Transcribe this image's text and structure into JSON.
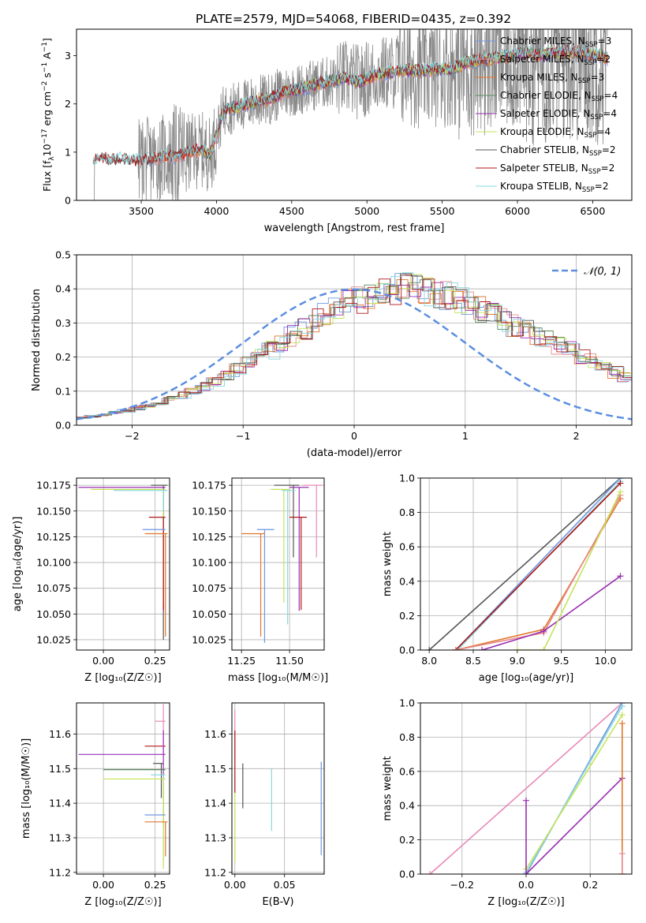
{
  "figure": {
    "title": "PLATE=2579, MJD=54068, FIBERID=0435, z=0.392"
  },
  "colors": {
    "chabrier_miles": "#6f96e0",
    "salpeter_miles": "#e58a8a",
    "kroupa_miles": "#e1772b",
    "chabrier_elodie": "#5b8a5b",
    "salpeter_elodie": "#9a2fb0",
    "kroupa_elodie": "#c6e35a",
    "chabrier_stelib": "#555555",
    "salpeter_stelib": "#b01818",
    "kroupa_stelib": "#86d8dc",
    "data_spectrum": "#888888",
    "normal_curve": "#5b8ee0",
    "pink": "#e88ab8"
  },
  "chart_data": [
    {
      "id": "spectrum",
      "type": "line",
      "xlabel": "wavelength [Angstrom, rest frame]",
      "ylabel": "Flux [f_λ 10^-17 erg cm^-2 s^-1 A^-1]",
      "xlim": [
        3070,
        6760
      ],
      "ylim": [
        0,
        3.55
      ],
      "xticks": [
        "3500",
        "4000",
        "4500",
        "5000",
        "5500",
        "6000",
        "6500"
      ],
      "yticks": [
        "0",
        "1",
        "2",
        "3"
      ],
      "grid": false,
      "legend_position": "top-right",
      "legend": [
        {
          "label": "Chabrier MILES, N",
          "sub": "SSP",
          "suffix": "=3",
          "color_key": "chabrier_miles"
        },
        {
          "label": "Salpeter MILES, N",
          "sub": "SSP",
          "suffix": "=2",
          "color_key": "salpeter_miles"
        },
        {
          "label": "Kroupa MILES, N",
          "sub": "SSP",
          "suffix": "=3",
          "color_key": "kroupa_miles"
        },
        {
          "label": "Chabrier ELODIE, N",
          "sub": "SSP",
          "suffix": "=4",
          "color_key": "chabrier_elodie"
        },
        {
          "label": "Salpeter ELODIE, N",
          "sub": "SSP",
          "suffix": "=4",
          "color_key": "salpeter_elodie"
        },
        {
          "label": "Kroupa ELODIE, N",
          "sub": "SSP",
          "suffix": "=4",
          "color_key": "kroupa_elodie"
        },
        {
          "label": "Chabrier STELIB, N",
          "sub": "SSP",
          "suffix": "=2",
          "color_key": "chabrier_stelib"
        },
        {
          "label": "Salpeter STELIB, N",
          "sub": "SSP",
          "suffix": "=2",
          "color_key": "salpeter_stelib"
        },
        {
          "label": "Kroupa STELIB, N",
          "sub": "SSP",
          "suffix": "=2",
          "color_key": "kroupa_stelib"
        }
      ],
      "model_continuum": [
        [
          3180,
          0.78
        ],
        [
          3230,
          0.88
        ],
        [
          3300,
          0.82
        ],
        [
          3380,
          0.85
        ],
        [
          3450,
          0.8
        ],
        [
          3550,
          0.84
        ],
        [
          3650,
          0.92
        ],
        [
          3720,
          0.9
        ],
        [
          3800,
          0.98
        ],
        [
          3900,
          1.05
        ],
        [
          3960,
          0.95
        ],
        [
          4050,
          1.88
        ],
        [
          4150,
          1.95
        ],
        [
          4250,
          2.05
        ],
        [
          4350,
          2.1
        ],
        [
          4450,
          2.25
        ],
        [
          4550,
          2.3
        ],
        [
          4650,
          2.4
        ],
        [
          4750,
          2.45
        ],
        [
          4850,
          2.55
        ],
        [
          4950,
          2.45
        ],
        [
          5050,
          2.6
        ],
        [
          5150,
          2.65
        ],
        [
          5250,
          2.7
        ],
        [
          5350,
          2.68
        ],
        [
          5450,
          2.72
        ],
        [
          5550,
          2.7
        ],
        [
          5650,
          2.85
        ],
        [
          5750,
          2.9
        ],
        [
          5850,
          2.95
        ],
        [
          5950,
          3.0
        ],
        [
          6050,
          3.05
        ],
        [
          6150,
          3.02
        ],
        [
          6250,
          3.05
        ],
        [
          6350,
          3.08
        ],
        [
          6450,
          3.05
        ],
        [
          6550,
          3.0
        ],
        [
          6600,
          2.95
        ]
      ],
      "data_start": 3185,
      "data_end": 6600
    },
    {
      "id": "residuals",
      "type": "line",
      "xlabel": "(data-model)/error",
      "ylabel": "Normed distribution",
      "xlim": [
        -2.5,
        2.5
      ],
      "ylim": [
        0,
        0.5
      ],
      "xticks": [
        "−2",
        "−1",
        "0",
        "1",
        "2"
      ],
      "yticks": [
        "0.0",
        "0.1",
        "0.2",
        "0.3",
        "0.4",
        "0.5"
      ],
      "grid": true,
      "legend_position": "top-right",
      "curve_label": "𝒩(0, 1)",
      "histogram_bin_width": 0.1,
      "histogram_base": [
        0.022,
        0.026,
        0.03,
        0.036,
        0.042,
        0.05,
        0.058,
        0.066,
        0.076,
        0.088,
        0.1,
        0.115,
        0.13,
        0.146,
        0.162,
        0.18,
        0.2,
        0.22,
        0.24,
        0.262,
        0.285,
        0.305,
        0.325,
        0.342,
        0.358,
        0.372,
        0.382,
        0.39,
        0.395,
        0.4,
        0.398,
        0.394,
        0.387,
        0.378,
        0.367,
        0.354,
        0.34,
        0.325,
        0.308,
        0.292,
        0.276,
        0.262,
        0.248,
        0.234,
        0.22,
        0.205,
        0.19,
        0.172,
        0.155,
        0.14
      ]
    },
    {
      "id": "age-vs-Z",
      "type": "scatter",
      "xlabel": "Z [log₁₀(Z/Z☉)]",
      "ylabel": "age  [log₁₀(age/yr)]",
      "xlim": [
        -0.13,
        0.32
      ],
      "ylim": [
        10.015,
        10.182
      ],
      "xticks": [
        "0.00",
        "0.25"
      ],
      "yticks": [
        "10.025",
        "10.050",
        "10.075",
        "10.100",
        "10.125",
        "10.150",
        "10.175"
      ],
      "grid": true,
      "points": [
        {
          "x": 0.29,
          "y": 10.175,
          "xerr": [
            0.06,
            0.02
          ],
          "yerr": [
            0.15,
            0.0
          ],
          "color_key": "chabrier_stelib"
        },
        {
          "x": 0.29,
          "y": 10.173,
          "xerr": [
            0.41,
            0.01
          ],
          "yerr": [
            0.12,
            0.0
          ],
          "color_key": "salpeter_elodie"
        },
        {
          "x": 0.29,
          "y": 10.171,
          "xerr": [
            0.35,
            0.01
          ],
          "yerr": [
            0.11,
            0.0
          ],
          "color_key": "kroupa_elodie"
        },
        {
          "x": 0.29,
          "y": 10.17,
          "xerr": [
            0.24,
            0.02
          ],
          "yerr": [
            0.02,
            0.0
          ],
          "color_key": "kroupa_stelib"
        },
        {
          "x": 0.29,
          "y": 10.144,
          "xerr": [
            0.07,
            0.01
          ],
          "yerr": [
            0.09,
            0.0
          ],
          "color_key": "salpeter_stelib"
        },
        {
          "x": 0.25,
          "y": 10.132,
          "xerr": [
            0.06,
            0.05
          ],
          "yerr": [
            0.0,
            0.0
          ],
          "color_key": "chabrier_miles"
        },
        {
          "x": 0.3,
          "y": 10.128,
          "xerr": [
            0.1,
            0.01
          ],
          "yerr": [
            0.1,
            0.0
          ],
          "color_key": "kroupa_miles"
        }
      ]
    },
    {
      "id": "age-vs-mass",
      "type": "scatter",
      "xlabel": "mass [log₁₀(M/M☉)]",
      "ylabel": "",
      "xlim": [
        11.2,
        11.68
      ],
      "ylim": [
        10.015,
        10.182
      ],
      "xticks": [
        "11.25",
        "11.50"
      ],
      "yticks": [
        "10.025",
        "10.050",
        "10.075",
        "10.100",
        "10.125",
        "10.150",
        "10.175"
      ],
      "grid": true,
      "points": [
        {
          "x": 11.52,
          "y": 10.175,
          "xerr": [
            0.1,
            0.03
          ],
          "yerr": [
            0.07,
            0.0
          ],
          "color_key": "chabrier_stelib"
        },
        {
          "x": 11.55,
          "y": 10.173,
          "xerr": [
            0.05,
            0.05
          ],
          "yerr": [
            0.12,
            0.0
          ],
          "color_key": "salpeter_elodie"
        },
        {
          "x": 11.47,
          "y": 10.171,
          "xerr": [
            0.07,
            0.03
          ],
          "yerr": [
            0.11,
            0.0
          ],
          "color_key": "kroupa_elodie"
        },
        {
          "x": 11.49,
          "y": 10.17,
          "xerr": [
            0.03,
            0.04
          ],
          "yerr": [
            0.13,
            0.0
          ],
          "color_key": "kroupa_stelib"
        },
        {
          "x": 11.64,
          "y": 10.175,
          "xerr": [
            0.07,
            0.03
          ],
          "yerr": [
            0.07,
            0.0
          ],
          "color_key": "pink"
        },
        {
          "x": 11.56,
          "y": 10.144,
          "xerr": [
            0.06,
            0.03
          ],
          "yerr": [
            0.09,
            0.0
          ],
          "color_key": "salpeter_stelib"
        },
        {
          "x": 11.37,
          "y": 10.132,
          "xerr": [
            0.04,
            0.05
          ],
          "yerr": [
            0.11,
            0.0
          ],
          "color_key": "chabrier_miles"
        },
        {
          "x": 11.35,
          "y": 10.128,
          "xerr": [
            0.1,
            0.02
          ],
          "yerr": [
            0.1,
            0.0
          ],
          "color_key": "kroupa_miles"
        }
      ]
    },
    {
      "id": "weight-vs-age",
      "type": "line",
      "xlabel": "age  [log₁₀(age/yr)]",
      "ylabel": "mass weight",
      "xlim": [
        7.9,
        10.3
      ],
      "ylim": [
        0,
        1.0
      ],
      "xticks": [
        "8.0",
        "8.5",
        "9.0",
        "9.5",
        "10.0"
      ],
      "yticks": [
        "0.0",
        "0.2",
        "0.4",
        "0.6",
        "0.8",
        "1.0"
      ],
      "grid": true,
      "series": [
        {
          "color_key": "chabrier_stelib",
          "points": [
            [
              8.0,
              0.0
            ],
            [
              10.17,
              1.0
            ]
          ]
        },
        {
          "color_key": "chabrier_miles",
          "points": [
            [
              8.3,
              0.0
            ],
            [
              10.17,
              1.0
            ]
          ]
        },
        {
          "color_key": "kroupa_stelib",
          "points": [
            [
              8.32,
              0.0
            ],
            [
              10.17,
              0.98
            ]
          ]
        },
        {
          "color_key": "salpeter_stelib",
          "points": [
            [
              8.3,
              0.0
            ],
            [
              10.17,
              0.97
            ]
          ]
        },
        {
          "color_key": "kroupa_miles",
          "points": [
            [
              8.3,
              0.0
            ],
            [
              9.3,
              0.12
            ],
            [
              10.17,
              0.88
            ]
          ]
        },
        {
          "color_key": "salpeter_miles",
          "points": [
            [
              8.3,
              0.0
            ],
            [
              9.3,
              0.1
            ],
            [
              10.17,
              0.9
            ]
          ]
        },
        {
          "color_key": "salpeter_elodie",
          "points": [
            [
              8.6,
              0.0
            ],
            [
              9.3,
              0.11
            ],
            [
              10.17,
              0.43
            ]
          ]
        },
        {
          "color_key": "kroupa_elodie",
          "points": [
            [
              9.0,
              0.0
            ],
            [
              9.3,
              0.0
            ],
            [
              10.17,
              0.92
            ]
          ]
        }
      ]
    },
    {
      "id": "mass-vs-Z",
      "type": "scatter",
      "xlabel": "Z [log₁₀(Z/Z☉)]",
      "ylabel": "mass [log₁₀(M/M☉)]",
      "xlim": [
        -0.13,
        0.32
      ],
      "ylim": [
        11.195,
        11.69
      ],
      "xticks": [
        "0.00",
        "0.25"
      ],
      "yticks": [
        "11.2",
        "11.3",
        "11.4",
        "11.5",
        "11.6"
      ],
      "grid": true,
      "points": [
        {
          "x": 0.29,
          "y": 11.637,
          "xerr": [
            0.04,
            0.01
          ],
          "yerr": [
            0.1,
            0.05
          ],
          "color_key": "pink"
        },
        {
          "x": 0.29,
          "y": 11.565,
          "xerr": [
            0.09,
            0.01
          ],
          "yerr": [
            0.0,
            0.0
          ],
          "color_key": "salpeter_stelib"
        },
        {
          "x": 0.29,
          "y": 11.541,
          "xerr": [
            0.41,
            0.01
          ],
          "yerr": [
            0.21,
            0.07
          ],
          "color_key": "salpeter_elodie"
        },
        {
          "x": 0.28,
          "y": 11.515,
          "xerr": [
            0.04,
            0.01
          ],
          "yerr": [
            0.1,
            0.0
          ],
          "color_key": "chabrier_stelib"
        },
        {
          "x": 0.29,
          "y": 11.497,
          "xerr": [
            0.29,
            0.01
          ],
          "yerr": [
            0.0,
            0.0
          ],
          "color_key": "chabrier_elodie"
        },
        {
          "x": 0.29,
          "y": 11.482,
          "xerr": [
            0.06,
            0.01
          ],
          "yerr": [
            0.25,
            0.0
          ],
          "color_key": "kroupa_stelib"
        },
        {
          "x": 0.29,
          "y": 11.47,
          "xerr": [
            0.29,
            0.01
          ],
          "yerr": [
            0.26,
            0.0
          ],
          "color_key": "kroupa_elodie"
        },
        {
          "x": 0.25,
          "y": 11.366,
          "xerr": [
            0.05,
            0.05
          ],
          "yerr": [
            0.0,
            0.0
          ],
          "color_key": "chabrier_miles"
        },
        {
          "x": 0.3,
          "y": 11.346,
          "xerr": [
            0.1,
            0.01
          ],
          "yerr": [
            0.1,
            0.0
          ],
          "color_key": "kroupa_miles"
        }
      ]
    },
    {
      "id": "mass-vs-EBV",
      "type": "scatter",
      "xlabel": "E(B-V)",
      "ylabel": "",
      "xlim": [
        -0.003,
        0.09
      ],
      "ylim": [
        11.195,
        11.69
      ],
      "xticks": [
        "0.00",
        "0.05"
      ],
      "yticks": [
        "11.2",
        "11.3",
        "11.4",
        "11.5",
        "11.6"
      ],
      "grid": true,
      "points": [
        {
          "x": 0.0,
          "y": 11.6,
          "yerr": [
            0.07,
            0.07
          ],
          "color_key": "pink"
        },
        {
          "x": 0.0,
          "y": 11.52,
          "yerr": [
            0.09,
            0.09
          ],
          "color_key": "salpeter_stelib"
        },
        {
          "x": 0.0,
          "y": 11.33,
          "yerr": [
            0.1,
            0.1
          ],
          "color_key": "kroupa_elodie"
        },
        {
          "x": 0.008,
          "y": 11.45,
          "yerr": [
            0.065,
            0.065
          ],
          "color_key": "chabrier_stelib"
        },
        {
          "x": 0.037,
          "y": 11.41,
          "yerr": [
            0.09,
            0.09
          ],
          "color_key": "kroupa_stelib"
        },
        {
          "x": 0.087,
          "y": 11.385,
          "yerr": [
            0.135,
            0.135
          ],
          "color_key": "chabrier_miles"
        }
      ]
    },
    {
      "id": "weight-vs-Z",
      "type": "line",
      "xlabel": "Z [log₁₀(Z/Z☉)]",
      "ylabel": "mass weight",
      "xlim": [
        -0.33,
        0.33
      ],
      "ylim": [
        0,
        1.0
      ],
      "xticks": [
        "−0.2",
        "0.0",
        "0.2"
      ],
      "yticks": [
        "0.0",
        "0.2",
        "0.4",
        "0.6",
        "0.8",
        "1.0"
      ],
      "grid": true,
      "series": [
        {
          "color_key": "pink",
          "points": [
            [
              -0.3,
              0.0
            ],
            [
              0.3,
              1.0
            ]
          ]
        },
        {
          "color_key": "chabrier_miles",
          "points": [
            [
              0.0,
              0.0
            ],
            [
              0.3,
              1.0
            ]
          ]
        },
        {
          "color_key": "kroupa_stelib",
          "points": [
            [
              0.0,
              0.01
            ],
            [
              0.3,
              0.98
            ]
          ]
        },
        {
          "color_key": "kroupa_elodie",
          "points": [
            [
              0.0,
              0.03
            ],
            [
              0.3,
              0.93
            ]
          ]
        },
        {
          "color_key": "salpeter_elodie",
          "points": [
            [
              0.0,
              0.43
            ],
            [
              0.0,
              0.0
            ],
            [
              0.3,
              0.56
            ]
          ]
        },
        {
          "color_key": "kroupa_miles",
          "points": [
            [
              0.3,
              0.0
            ],
            [
              0.3,
              0.88
            ]
          ]
        },
        {
          "color_key": "salpeter_miles",
          "points": [
            [
              0.3,
              0.12
            ],
            [
              0.3,
              0.0
            ]
          ]
        }
      ]
    }
  ]
}
